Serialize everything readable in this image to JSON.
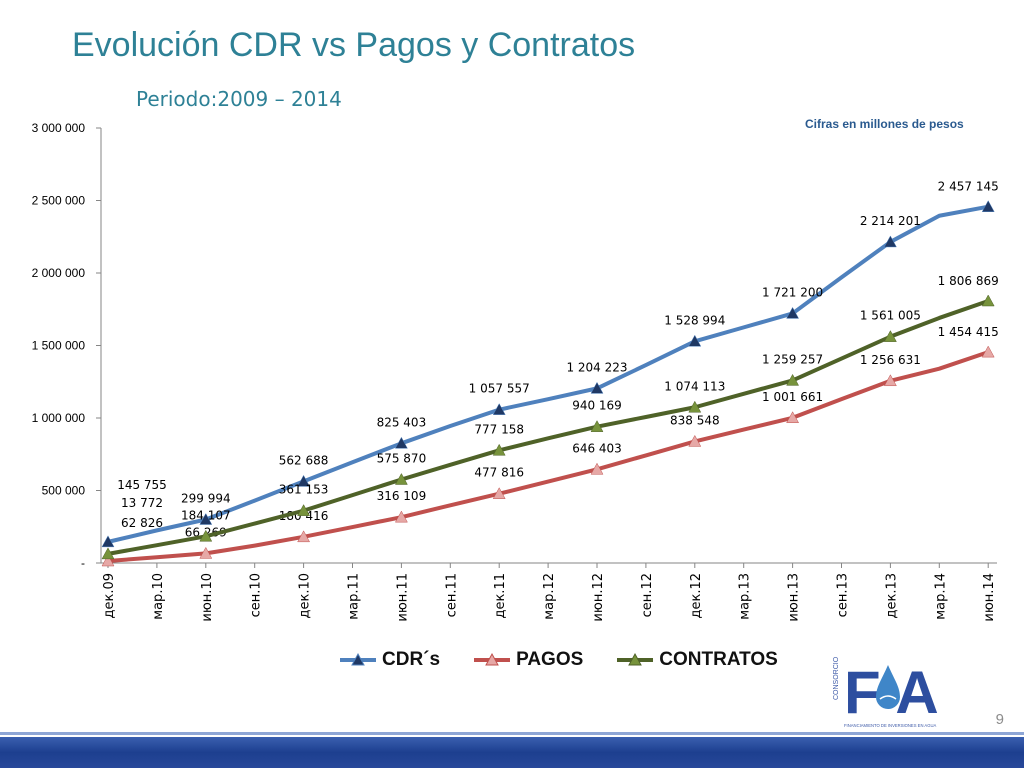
{
  "slide": {
    "title": "Evolución CDR vs Pagos y Contratos",
    "subtitle": "Periodo:2009 – 2014",
    "units_note": "Cifras en millones de pesos",
    "page_number": "9",
    "logo_text": "FA",
    "logo_side_text": "CONSORCIO",
    "logo_caption": "FINANCIAMIENTO DE INVERSIONES EN AGUA"
  },
  "chart_data": {
    "type": "line",
    "x": [
      "дек.09",
      "мар.10",
      "июн.10",
      "сен.10",
      "дек.10",
      "мар.11",
      "июн.11",
      "сен.11",
      "дек.11",
      "мар.12",
      "июн.12",
      "сен.12",
      "дек.12",
      "мар.13",
      "июн.13",
      "сен.13",
      "дек.13",
      "мар.14",
      "июн.14"
    ],
    "ylim": [
      0,
      3000000
    ],
    "yticks": [
      0,
      500000,
      1000000,
      1500000,
      2000000,
      2500000,
      3000000
    ],
    "ytick_labels": [
      "-",
      "500 000",
      "1 000 000",
      "1 500 000",
      "2 000 000",
      "2 500 000",
      "3 000 000"
    ],
    "grid": false,
    "legend_position": "bottom",
    "series": [
      {
        "name": "CDR´s",
        "color": "#4f81bd",
        "marker_color": "#1f3864",
        "values": [
          145755,
          225000,
          299994,
          430000,
          562688,
          695000,
          825403,
          945000,
          1057557,
          1130000,
          1204223,
          1365000,
          1528994,
          1625000,
          1721200,
          1970000,
          2214201,
          2395000,
          2457145
        ],
        "labels": [
          "145 755",
          null,
          "299 994",
          null,
          "562 688",
          null,
          "825 403",
          null,
          "1 057 557",
          null,
          "1 204 223",
          null,
          "1 528 994",
          null,
          "1 721 200",
          null,
          "2 214 201",
          null,
          "2 457 145"
        ]
      },
      {
        "name": "PAGOS",
        "color": "#c0504d",
        "marker_color": "#e6a8a6",
        "values": [
          13772,
          40000,
          66269,
          120000,
          180416,
          248000,
          316109,
          398000,
          477816,
          562000,
          646403,
          742000,
          838548,
          920000,
          1001661,
          1130000,
          1256631,
          1340000,
          1454415
        ],
        "labels": [
          "13 772",
          null,
          "66 269",
          null,
          "180 416",
          null,
          "316 109",
          null,
          "477 816",
          null,
          "646 403",
          null,
          "838 548",
          null,
          "1 001 661",
          null,
          "1 256 631",
          null,
          "1 454 415"
        ]
      },
      {
        "name": "CONTRATOS",
        "color": "#4f6228",
        "marker_color": "#77933c",
        "values": [
          62826,
          123000,
          184107,
          272000,
          361153,
          468000,
          575870,
          677000,
          777158,
          860000,
          940169,
          1007000,
          1074113,
          1167000,
          1259257,
          1410000,
          1561005,
          1690000,
          1806869
        ],
        "labels": [
          "62 826",
          null,
          "184 107",
          null,
          "361 153",
          null,
          "575 870",
          null,
          "777 158",
          null,
          "940 169",
          null,
          "1 074 113",
          null,
          "1 259 257",
          null,
          "1 561 005",
          null,
          "1 806 869"
        ]
      }
    ]
  }
}
